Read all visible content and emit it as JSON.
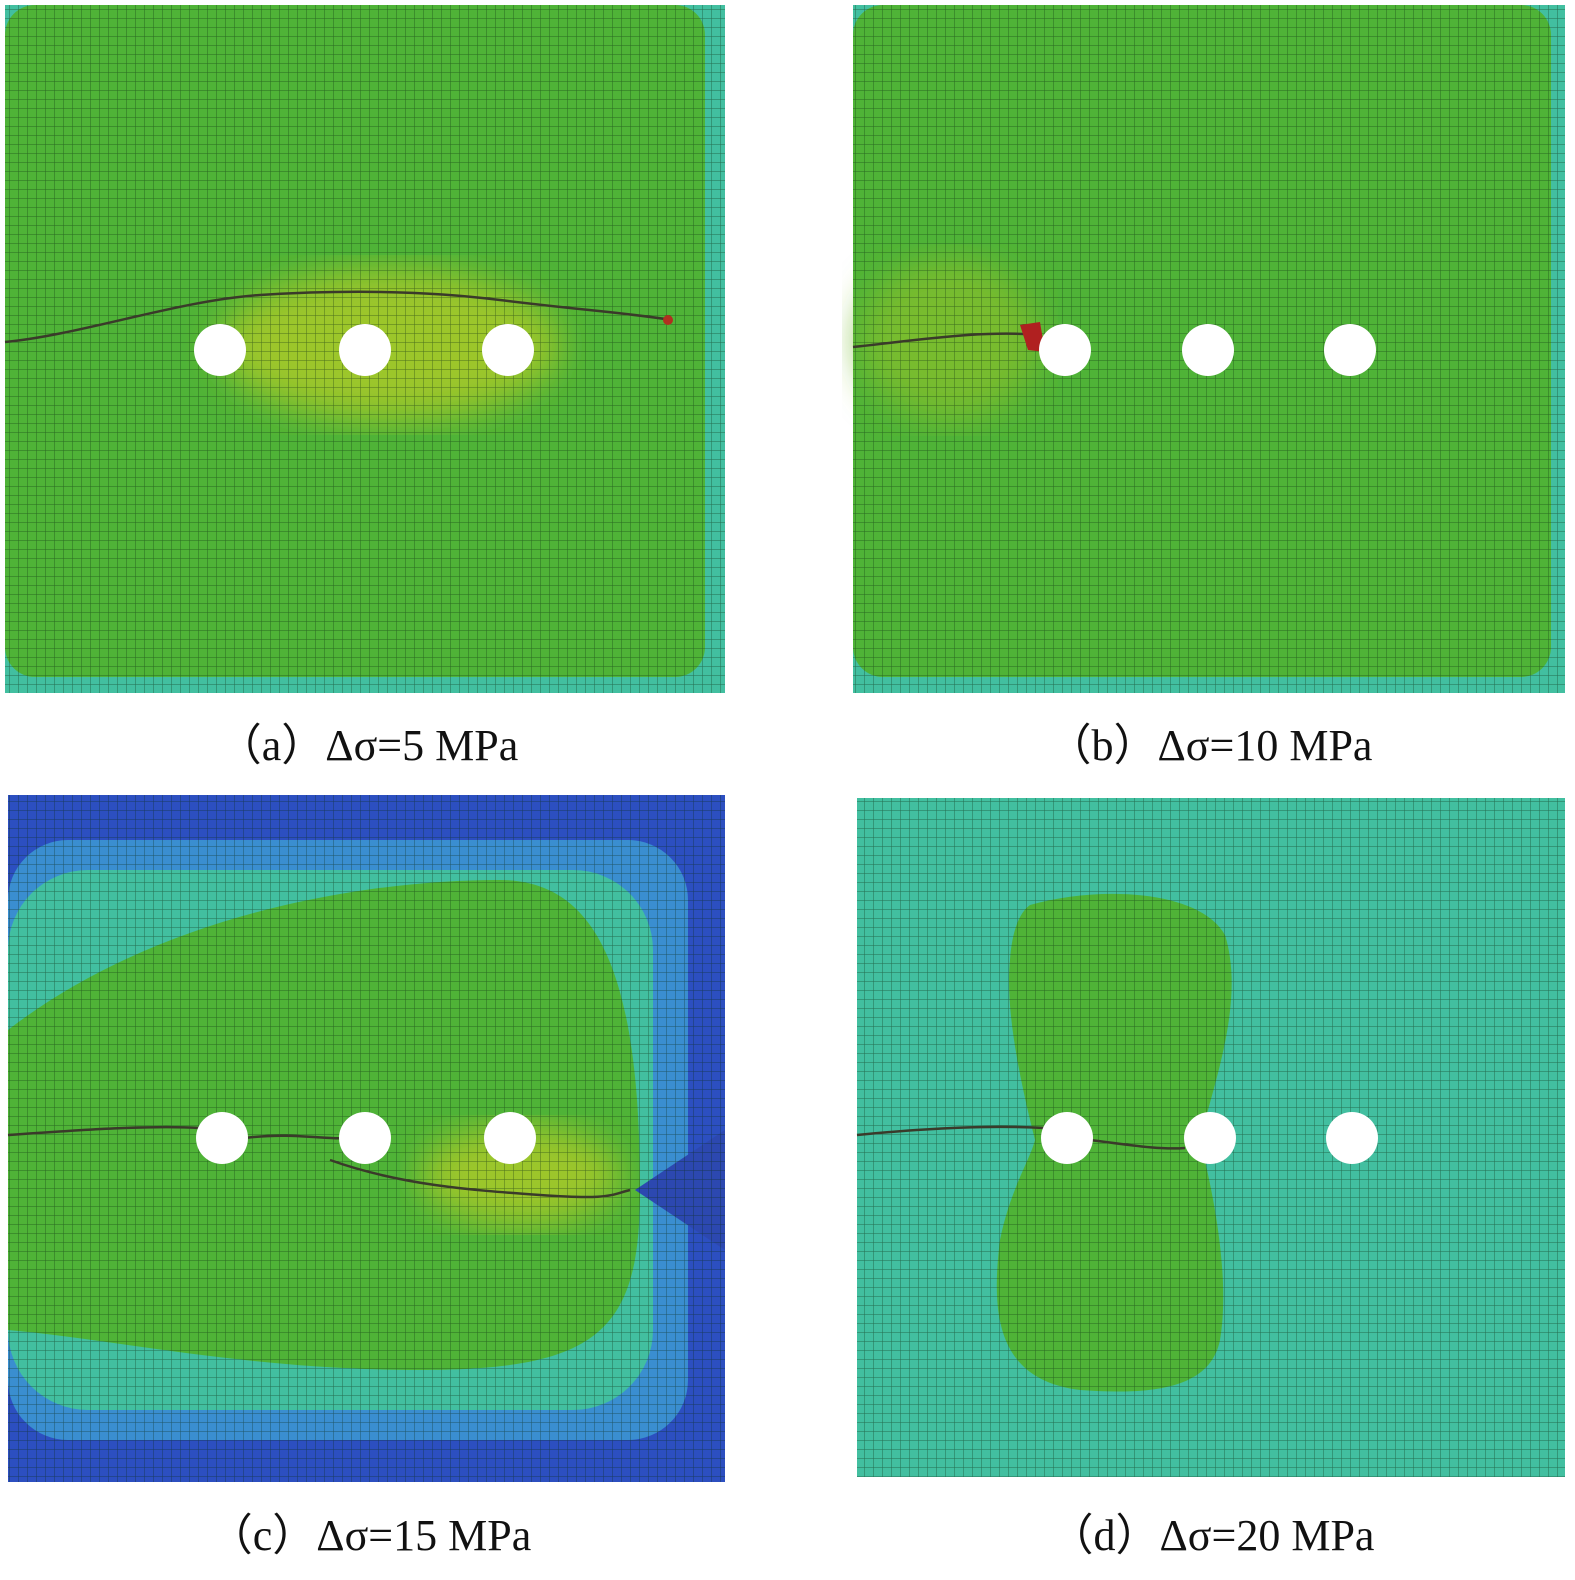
{
  "panels": [
    {
      "caption": "（a）Δσ=5 MPa"
    },
    {
      "caption": "（b）Δσ=10 MPa"
    },
    {
      "caption": "（c）Δσ=15 MPa"
    },
    {
      "caption": "（d）Δσ=20 MPa"
    }
  ]
}
